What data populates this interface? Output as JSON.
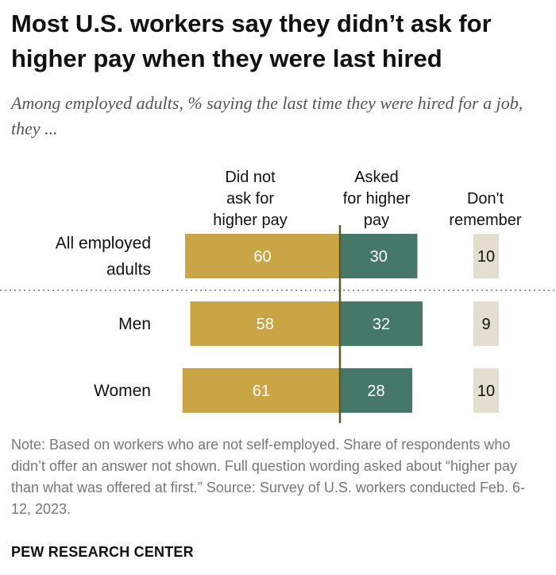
{
  "title": "Most U.S. workers say they didn’t ask for higher pay when they were last hired",
  "subtitle": "Among employed adults, % saying the last time they were hired for a job, they ...",
  "note": "Note: Based on workers who are not self-employed. Share of respondents who didn’t offer an answer not shown. Full question wording asked about “higher pay than what was offered at first.” Source: Survey of U.S. workers conducted Feb. 6-12, 2023.",
  "brand": "PEW RESEARCH CENTER",
  "colors": {
    "did_not_ask": "#c9a545",
    "asked": "#46786a",
    "dont_remember": "#e3ded0"
  },
  "chart_data": {
    "type": "bar",
    "orientation": "horizontal-diverging",
    "categories": [
      [
        "All employed",
        "adults"
      ],
      [
        "Men"
      ],
      [
        "Women"
      ]
    ],
    "series": [
      {
        "name": [
          "Did not",
          "ask for",
          "higher pay"
        ],
        "values": [
          60,
          58,
          61
        ]
      },
      {
        "name": [
          "Asked",
          "for higher",
          "pay"
        ],
        "values": [
          30,
          32,
          28
        ]
      },
      {
        "name": [
          "Don't",
          "remember"
        ],
        "values": [
          10,
          9,
          10
        ]
      }
    ]
  }
}
